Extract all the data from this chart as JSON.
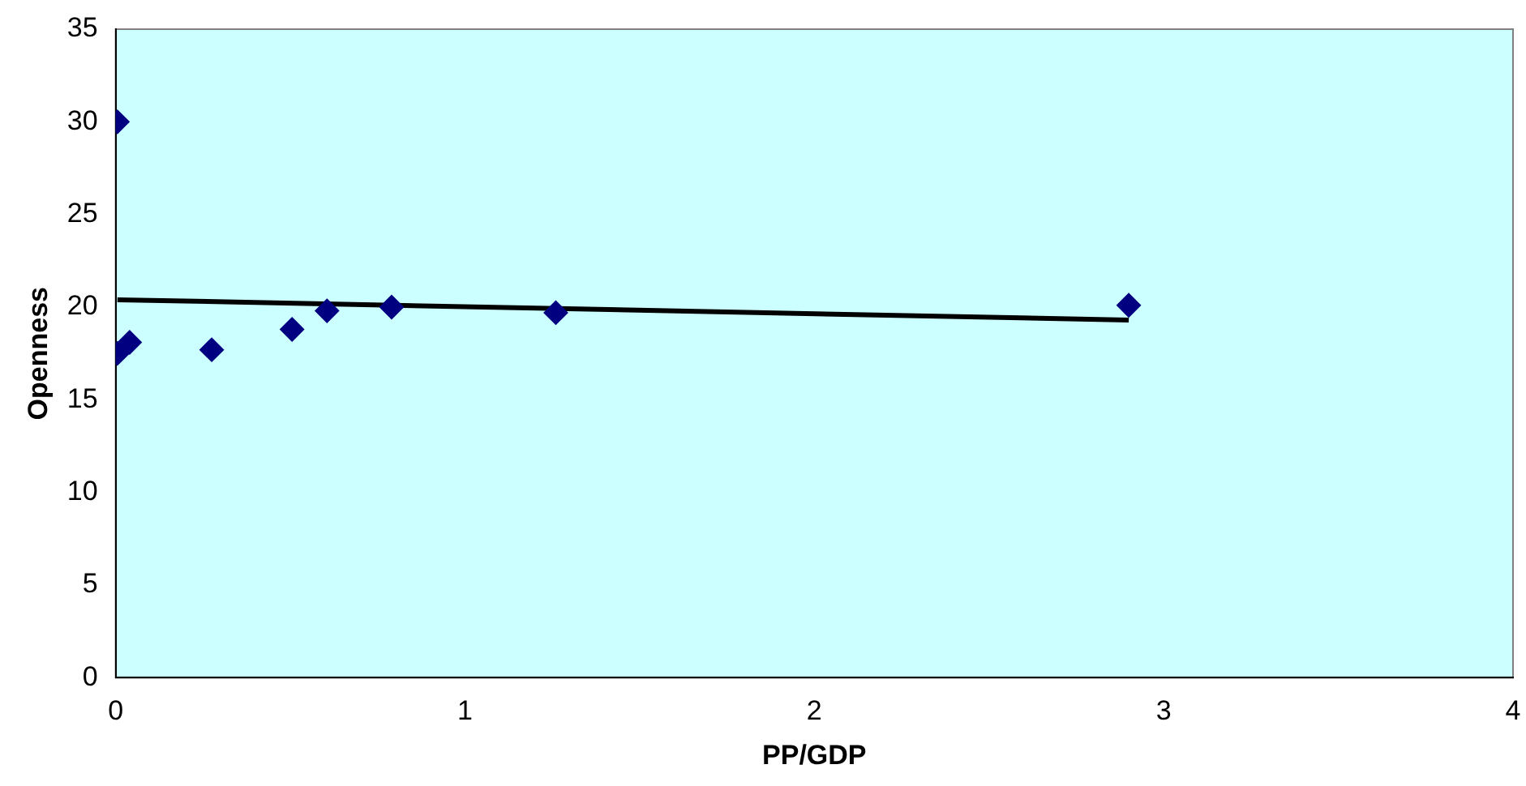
{
  "chart_data": {
    "type": "scatter",
    "xlabel": "PP/GDP",
    "ylabel": "Openness",
    "xlim": [
      0,
      4
    ],
    "xticks": [
      0,
      1,
      2,
      3,
      4
    ],
    "ylim": [
      0,
      35
    ],
    "yticks": [
      0,
      5,
      10,
      15,
      20,
      25,
      30,
      35
    ],
    "grid": false,
    "legend": false,
    "series": [
      {
        "color": "#000080",
        "marker": "diamond",
        "x": [
          0.005,
          0.005,
          0.04,
          0.275,
          0.505,
          0.605,
          0.79,
          1.26,
          2.9
        ],
        "values": [
          30,
          17.5,
          18.1,
          17.7,
          18.8,
          19.8,
          20,
          19.7,
          20.1
        ]
      },
      {
        "type": "line",
        "color": "#000000",
        "marker": "none",
        "line_style": "solid",
        "x": [
          0.005,
          2.9
        ],
        "values": [
          20.4,
          19.3
        ]
      }
    ]
  }
}
